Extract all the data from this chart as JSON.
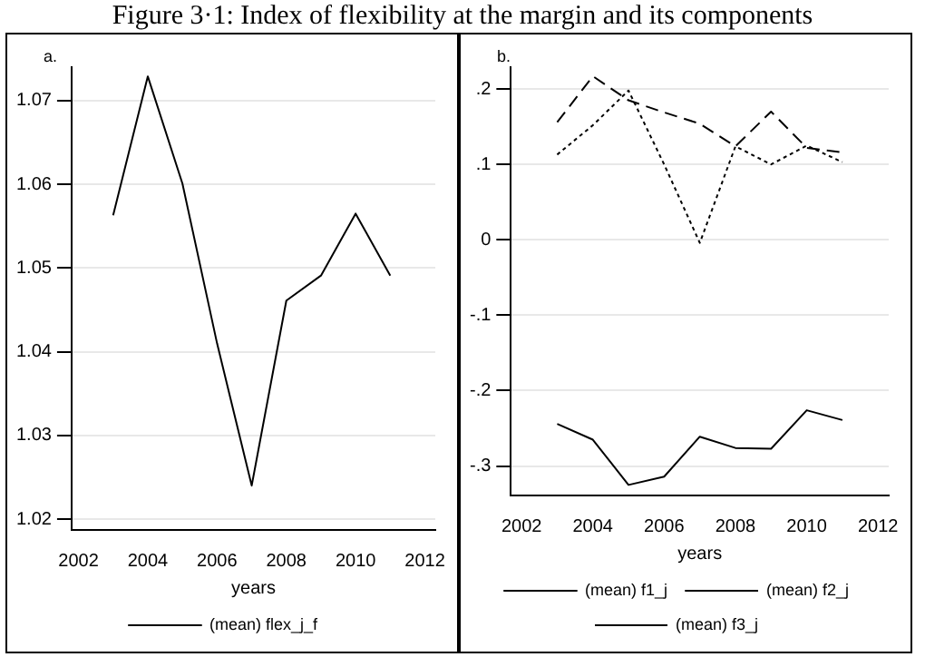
{
  "chart_data": [
    {
      "type": "line",
      "title": "Figure 3·1: Index of flexibility at the margin and its components",
      "annotations": [
        "a."
      ],
      "xlabel": "years",
      "x": [
        2003,
        2004,
        2005,
        2006,
        2007,
        2008,
        2009,
        2010,
        2011
      ],
      "xlim": [
        2001.8,
        2012.3
      ],
      "xticks": [
        2002,
        2004,
        2006,
        2008,
        2010,
        2012
      ],
      "ylim": [
        1.0187,
        1.074
      ],
      "yticks": [
        1.02,
        1.03,
        1.04,
        1.05,
        1.06,
        1.07
      ],
      "grid": "y",
      "legend": "bottom",
      "marker": "none",
      "series": [
        {
          "name": "(mean) flex_j_f",
          "color": "#000000",
          "line_style": "solid",
          "values": [
            1.0563,
            1.0729,
            1.0601,
            1.041,
            1.024,
            1.0461,
            1.0491,
            1.0565,
            1.0491
          ]
        }
      ]
    },
    {
      "type": "line",
      "annotations": [
        "b."
      ],
      "xlabel": "years",
      "x": [
        2003,
        2004,
        2005,
        2006,
        2007,
        2008,
        2009,
        2010,
        2011
      ],
      "xlim": [
        2001.7,
        2012.3
      ],
      "xticks": [
        2002,
        2004,
        2006,
        2008,
        2010,
        2012
      ],
      "ylim": [
        -0.339,
        0.229
      ],
      "yticks": [
        {
          "value": -0.3,
          "label": "-.3"
        },
        {
          "value": -0.2,
          "label": "-.2"
        },
        {
          "value": -0.1,
          "label": "-.1"
        },
        0,
        {
          "value": 0.1,
          "label": ".1"
        },
        {
          "value": 0.2,
          "label": ".2"
        }
      ],
      "grid": "y",
      "legend": "bottom",
      "marker": "none",
      "series": [
        {
          "name": "(mean) f1_j",
          "color": "#000000",
          "line_style": "solid",
          "values": [
            -0.244,
            -0.265,
            -0.325,
            -0.314,
            -0.261,
            -0.276,
            -0.277,
            -0.226,
            -0.239
          ]
        },
        {
          "name": "(mean) f2_j",
          "color": "#000000",
          "line_style": "dashed",
          "values": [
            0.156,
            0.217,
            0.185,
            0.169,
            0.154,
            0.124,
            0.17,
            0.122,
            0.116
          ]
        },
        {
          "name": "(mean) f3_j",
          "color": "#000000",
          "line_style": "dotted",
          "values": [
            0.113,
            0.152,
            0.198,
            0.1,
            -0.004,
            0.124,
            0.1,
            0.125,
            0.103
          ]
        }
      ]
    }
  ]
}
